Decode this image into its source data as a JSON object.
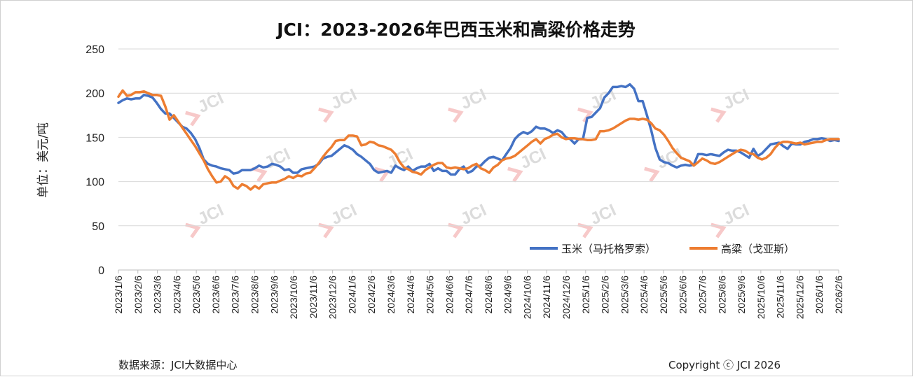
{
  "chart_data": {
    "type": "line",
    "title": "JCI：2023-2026年巴西玉米和高粱价格走势",
    "ylabel": "单位：美元/吨",
    "ylim": [
      0,
      250
    ],
    "yticks": [
      0,
      50,
      100,
      150,
      200,
      250
    ],
    "xticks": [
      "2023/1/6",
      "2023/2/6",
      "2023/3/6",
      "2023/4/6",
      "2023/5/6",
      "2023/6/6",
      "2023/7/6",
      "2023/8/6",
      "2023/9/6",
      "2023/10/6",
      "2023/11/6",
      "2023/12/6",
      "2024/1/6",
      "2024/2/6",
      "2024/3/6",
      "2024/4/6",
      "2024/5/6",
      "2024/6/6",
      "2024/7/6",
      "2024/8/6",
      "2024/9/6",
      "2024/10/6",
      "2024/11/6",
      "2024/12/6",
      "2025/1/6",
      "2025/2/6",
      "2025/3/6",
      "2025/4/6",
      "2025/5/6",
      "2025/6/6",
      "2025/7/6",
      "2025/8/6",
      "2025/9/6",
      "2025/10/6",
      "2025/11/6",
      "2025/12/6",
      "2026/1/6",
      "2026/2/6"
    ],
    "grid": true,
    "legend_position": "bottom-right",
    "series": [
      {
        "name": "玉米（马托格罗索）",
        "color": "#4472C4",
        "values": [
          189,
          192,
          194,
          193,
          194,
          194,
          198,
          197,
          195,
          189,
          182,
          177,
          177,
          172,
          167,
          162,
          160,
          155,
          148,
          138,
          125,
          120,
          118,
          117,
          115,
          114,
          113,
          109,
          110,
          113,
          113,
          113,
          115,
          118,
          116,
          117,
          120,
          119,
          117,
          113,
          114,
          110,
          110,
          114,
          115,
          116,
          117,
          120,
          126,
          128,
          129,
          133,
          137,
          141,
          139,
          136,
          131,
          128,
          124,
          120,
          113,
          110,
          111,
          112,
          110,
          118,
          115,
          113,
          117,
          112,
          115,
          117,
          117,
          120,
          112,
          115,
          112,
          112,
          108,
          108,
          114,
          117,
          110,
          112,
          117,
          118,
          123,
          127,
          128,
          126,
          124,
          131,
          138,
          148,
          153,
          156,
          154,
          157,
          162,
          160,
          160,
          158,
          155,
          158,
          156,
          150,
          148,
          143,
          148,
          148,
          172,
          173,
          178,
          183,
          195,
          200,
          207,
          207,
          208,
          207,
          210,
          205,
          191,
          191,
          175,
          158,
          138,
          125,
          122,
          121,
          118,
          116,
          118,
          119,
          118,
          119,
          131,
          131,
          130,
          131,
          130,
          129,
          133,
          136,
          135,
          135,
          133,
          130,
          127,
          137,
          129,
          132,
          137,
          142,
          143,
          144,
          140,
          137,
          143,
          142,
          142,
          145,
          146,
          148,
          148,
          149,
          148,
          146,
          147,
          146
        ]
      },
      {
        "name": "高粱（戈亚斯）",
        "color": "#ED7D31",
        "values": [
          196,
          203,
          197,
          198,
          201,
          201,
          202,
          200,
          198,
          198,
          197,
          185,
          170,
          175,
          168,
          161,
          154,
          147,
          140,
          132,
          124,
          114,
          106,
          99,
          100,
          106,
          103,
          95,
          92,
          97,
          95,
          91,
          95,
          92,
          97,
          98,
          99,
          99,
          101,
          103,
          106,
          104,
          107,
          106,
          109,
          110,
          115,
          121,
          128,
          134,
          139,
          146,
          147,
          147,
          152,
          152,
          151,
          141,
          142,
          145,
          144,
          141,
          140,
          138,
          136,
          131,
          122,
          116,
          114,
          111,
          110,
          108,
          113,
          116,
          119,
          121,
          121,
          116,
          115,
          116,
          115,
          114,
          115,
          118,
          120,
          115,
          113,
          110,
          116,
          119,
          124,
          126,
          127,
          129,
          133,
          137,
          141,
          145,
          148,
          143,
          148,
          150,
          153,
          154,
          150,
          148,
          149,
          149,
          148,
          148,
          147,
          147,
          148,
          157,
          157,
          158,
          160,
          163,
          166,
          169,
          171,
          171,
          170,
          171,
          170,
          166,
          160,
          158,
          153,
          146,
          138,
          132,
          127,
          125,
          123,
          118,
          122,
          126,
          124,
          121,
          120,
          122,
          125,
          128,
          131,
          134,
          136,
          135,
          132,
          131,
          127,
          125,
          127,
          131,
          138,
          143,
          145,
          145,
          144,
          143,
          144,
          142,
          143,
          144,
          145,
          145,
          147,
          148,
          148,
          148
        ]
      }
    ]
  },
  "footer": {
    "source": "数据来源：JCI大数据中心",
    "copyright": "Copyright ⓒ JCI 2026"
  },
  "watermark": "JCI"
}
